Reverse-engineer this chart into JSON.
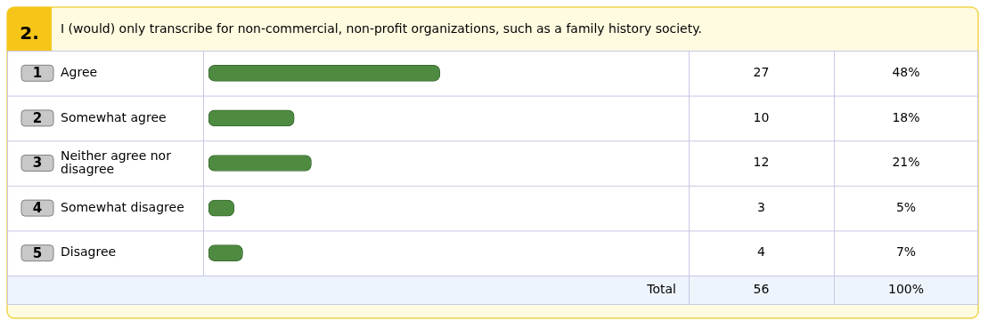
{
  "chart_data": {
    "type": "bar",
    "orientation": "horizontal",
    "title": "I (would) only transcribe for non-commercial, non-profit organizations, such as a family history society.",
    "categories": [
      "Agree",
      "Somewhat agree",
      "Neither agree nor disagree",
      "Somewhat disagree",
      "Disagree"
    ],
    "values": [
      27,
      10,
      12,
      3,
      4
    ],
    "color": "#4e8b40",
    "data_labels": true,
    "annotations": [
      "2.",
      "1",
      "2",
      "3",
      "4",
      "5",
      "Total",
      "56",
      "100%",
      "48%",
      "18%",
      "21%",
      "5%",
      "7%"
    ],
    "legend": false
  }
}
